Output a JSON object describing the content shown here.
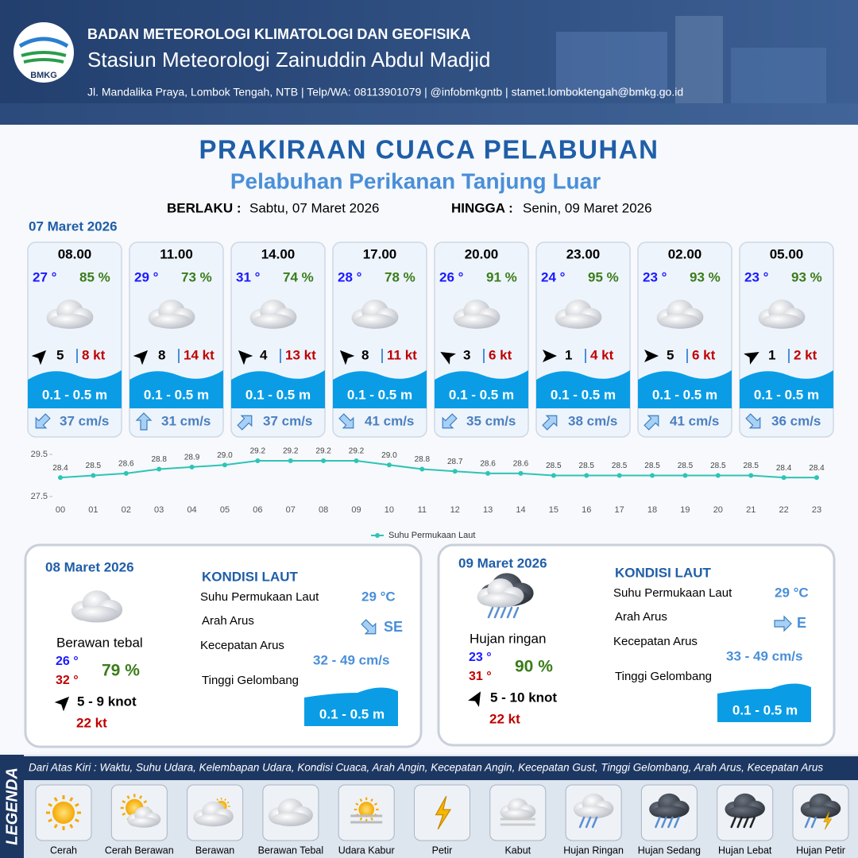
{
  "header": {
    "logo": "BMKG",
    "organization": "BADAN METEOROLOGI KLIMATOLOGI DAN GEOFISIKA",
    "station": "Stasiun Meteorologi Zainuddin Abdul Madjid",
    "contact": "Jl. Mandalika Praya, Lombok Tengah, NTB | Telp/WA: 08113901079 | @infobmkgntb | stamet.lomboktengah@bmkg.go.id"
  },
  "title": "PRAKIRAAN CUACA PELABUHAN",
  "subtitle": "Pelabuhan Perikanan Tanjung Luar",
  "validity": {
    "from_label": "BERLAKU :",
    "from": "Sabtu, 07 Maret 2026",
    "to_label": "HINGGA :",
    "to": "Senin, 09 Maret 2026"
  },
  "day1": {
    "date": "07 Maret 2026",
    "cards": [
      {
        "time": "08.00",
        "temp": "27 °",
        "humidity": "85 %",
        "wind": "5",
        "gust": "8 kt",
        "wave": "0.1 - 0.5 m",
        "current": "37 cm/s"
      },
      {
        "time": "11.00",
        "temp": "29 °",
        "humidity": "73 %",
        "wind": "8",
        "gust": "14 kt",
        "wave": "0.1 - 0.5 m",
        "current": "31 cm/s"
      },
      {
        "time": "14.00",
        "temp": "31 °",
        "humidity": "74 %",
        "wind": "4",
        "gust": "13 kt",
        "wave": "0.1 - 0.5 m",
        "current": "37 cm/s"
      },
      {
        "time": "17.00",
        "temp": "28 °",
        "humidity": "78 %",
        "wind": "8",
        "gust": "11 kt",
        "wave": "0.1 - 0.5 m",
        "current": "41 cm/s"
      },
      {
        "time": "20.00",
        "temp": "26 °",
        "humidity": "91 %",
        "wind": "3",
        "gust": "6 kt",
        "wave": "0.1 - 0.5 m",
        "current": "35 cm/s"
      },
      {
        "time": "23.00",
        "temp": "24 °",
        "humidity": "95 %",
        "wind": "1",
        "gust": "4 kt",
        "wave": "0.1 - 0.5 m",
        "current": "38 cm/s"
      },
      {
        "time": "02.00",
        "temp": "23 °",
        "humidity": "93 %",
        "wind": "5",
        "gust": "6 kt",
        "wave": "0.1 - 0.5 m",
        "current": "41 cm/s"
      },
      {
        "time": "05.00",
        "temp": "23 °",
        "humidity": "93 %",
        "wind": "1",
        "gust": "2 kt",
        "wave": "0.1 - 0.5 m",
        "current": "36 cm/s"
      }
    ]
  },
  "chart_data": {
    "type": "line",
    "categories": [
      "00",
      "01",
      "02",
      "03",
      "04",
      "05",
      "06",
      "07",
      "08",
      "09",
      "10",
      "11",
      "12",
      "13",
      "14",
      "15",
      "16",
      "17",
      "18",
      "19",
      "20",
      "21",
      "22",
      "23"
    ],
    "series": [
      {
        "name": "Suhu Permukaan Laut",
        "color": "#2ec4b6",
        "values": [
          28.4,
          28.5,
          28.6,
          28.8,
          28.9,
          29.0,
          29.2,
          29.2,
          29.2,
          29.2,
          29.0,
          28.8,
          28.7,
          28.6,
          28.6,
          28.5,
          28.5,
          28.5,
          28.5,
          28.5,
          28.5,
          28.5,
          28.4,
          28.4
        ],
        "value_labels": [
          "28.4",
          "28.5",
          "28.6",
          "28.8",
          "28.9",
          "29.0",
          "29.2",
          "29.2",
          "29.2",
          "29.2",
          "29.0",
          "28.8",
          "28.7",
          "28.6",
          "28.6",
          "28.5",
          "28.5",
          "28.5",
          "28.5",
          "28.5",
          "28.5",
          "28.5",
          "28.4",
          "28.4"
        ]
      }
    ],
    "ylim": [
      27.5,
      29.5
    ],
    "yticks": [
      27.5,
      29.5
    ],
    "legend": "bottom"
  },
  "days": [
    {
      "date": "08 Maret 2026",
      "condition": "Berawan tebal",
      "temp_min": "26 °",
      "temp_max": "32 °",
      "humidity": "79 %",
      "wind": "5  - 9 knot",
      "gust": "22 kt",
      "sea_heading": "KONDISI LAUT",
      "sea_labels": [
        "Suhu Permukaan Laut",
        "Arah Arus",
        "Kecepatan Arus",
        "Tinggi Gelombang"
      ],
      "sea_temp": "29 °C",
      "current_dir": "SE",
      "current_speed": "32 - 49 cm/s",
      "wave": "0.1 - 0.5 m"
    },
    {
      "date": "09 Maret 2026",
      "condition": "Hujan ringan",
      "temp_min": "23 °",
      "temp_max": "31 °",
      "humidity": "90 %",
      "wind": "5 - 10 knot",
      "gust": "22 kt",
      "sea_heading": "KONDISI LAUT",
      "sea_labels": [
        "Suhu Permukaan Laut",
        "Arah Arus",
        "Kecepatan Arus",
        "Tinggi Gelombang"
      ],
      "sea_temp": "29 °C",
      "current_dir": "E",
      "current_speed": "33 - 49 cm/s",
      "wave": "0.1 - 0.5 m"
    }
  ],
  "legend": {
    "title": "LEGENDA",
    "description": "Dari Atas Kiri : Waktu, Suhu Udara, Kelembapan Udara, Kondisi Cuaca, Arah Angin, Kecepatan Angin, Kecepatan Gust, Tinggi Gelombang, Arah Arus, Kecepatan Arus",
    "items": [
      "Cerah",
      "Cerah Berawan",
      "Berawan",
      "Berawan Tebal",
      "Udara Kabur",
      "Petir",
      "Kabut",
      "Hujan Ringan",
      "Hujan Sedang",
      "Hujan Lebat",
      "Hujan Petir"
    ]
  }
}
